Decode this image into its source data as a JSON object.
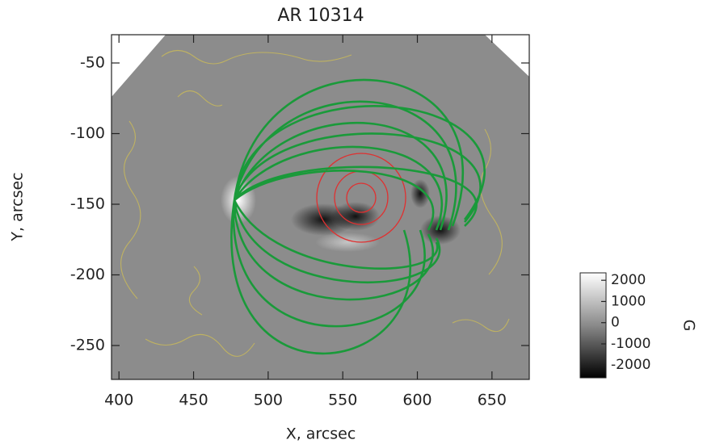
{
  "chart_data": {
    "type": "image",
    "title": "AR 10314",
    "xlabel": "X, arcsec",
    "ylabel": "Y, arcsec",
    "xlim": [
      395,
      675
    ],
    "xticks": [
      400,
      450,
      500,
      550,
      600,
      650
    ],
    "ylim": [
      -274,
      -30
    ],
    "yticks": [
      -50,
      -100,
      -150,
      -200,
      -250
    ],
    "colorbar": {
      "label": "G",
      "lim": [
        -2600,
        2350
      ],
      "ticks": [
        2000,
        1000,
        0,
        -1000,
        -2000
      ]
    }
  }
}
